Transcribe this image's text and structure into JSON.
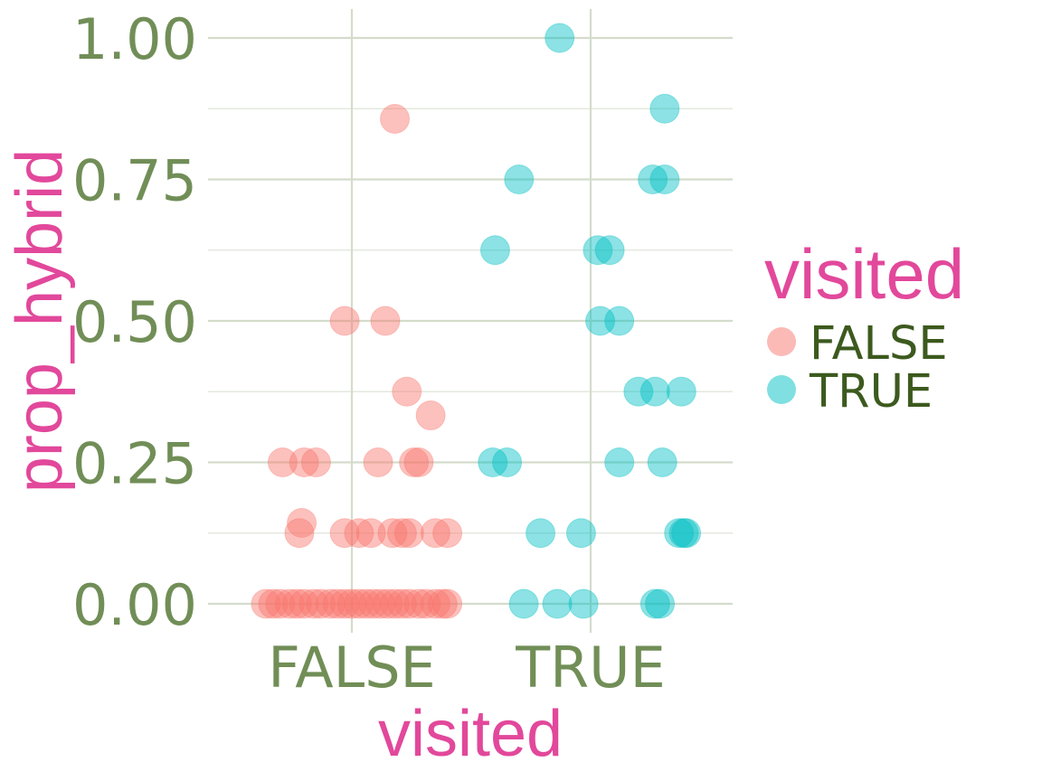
{
  "chart_data": {
    "type": "scatter",
    "title": "",
    "xlabel": "visited",
    "ylabel": "prop_hybrid",
    "categories": [
      "FALSE",
      "TRUE"
    ],
    "y_ticks": [
      "0.00",
      "0.25",
      "0.50",
      "0.75",
      "1.00"
    ],
    "ylim": [
      0,
      1
    ],
    "grid": true,
    "legend": {
      "title": "visited",
      "position": "right",
      "entries": [
        "FALSE",
        "TRUE"
      ]
    },
    "colors": {
      "FALSE": "#F8766D",
      "TRUE": "#00BFC4",
      "axis_text": "#718e57",
      "title_text": "#e2489b",
      "legend_text": "#3c5a1e",
      "grid": "#d4dccc"
    },
    "series": [
      {
        "name": "FALSE",
        "points": [
          {
            "x": 0.18,
            "y": 0.857
          },
          {
            "x": -0.03,
            "y": 0.5
          },
          {
            "x": 0.14,
            "y": 0.5
          },
          {
            "x": 0.23,
            "y": 0.375
          },
          {
            "x": 0.33,
            "y": 0.333
          },
          {
            "x": -0.29,
            "y": 0.25
          },
          {
            "x": -0.2,
            "y": 0.25
          },
          {
            "x": -0.15,
            "y": 0.25
          },
          {
            "x": 0.11,
            "y": 0.25
          },
          {
            "x": 0.26,
            "y": 0.25
          },
          {
            "x": 0.28,
            "y": 0.25
          },
          {
            "x": -0.21,
            "y": 0.143
          },
          {
            "x": -0.22,
            "y": 0.125
          },
          {
            "x": -0.03,
            "y": 0.125
          },
          {
            "x": 0.03,
            "y": 0.125
          },
          {
            "x": 0.08,
            "y": 0.125
          },
          {
            "x": 0.17,
            "y": 0.125
          },
          {
            "x": 0.21,
            "y": 0.125
          },
          {
            "x": 0.24,
            "y": 0.125
          },
          {
            "x": 0.35,
            "y": 0.125
          },
          {
            "x": 0.4,
            "y": 0.125
          },
          {
            "x": -0.36,
            "y": 0
          },
          {
            "x": -0.33,
            "y": 0
          },
          {
            "x": -0.3,
            "y": 0
          },
          {
            "x": -0.26,
            "y": 0
          },
          {
            "x": -0.23,
            "y": 0
          },
          {
            "x": -0.2,
            "y": 0
          },
          {
            "x": -0.16,
            "y": 0
          },
          {
            "x": -0.13,
            "y": 0
          },
          {
            "x": -0.09,
            "y": 0
          },
          {
            "x": -0.06,
            "y": 0
          },
          {
            "x": -0.03,
            "y": 0
          },
          {
            "x": 0.0,
            "y": 0
          },
          {
            "x": 0.03,
            "y": 0
          },
          {
            "x": 0.06,
            "y": 0
          },
          {
            "x": 0.09,
            "y": 0
          },
          {
            "x": 0.12,
            "y": 0
          },
          {
            "x": 0.15,
            "y": 0
          },
          {
            "x": 0.18,
            "y": 0
          },
          {
            "x": 0.21,
            "y": 0
          },
          {
            "x": 0.24,
            "y": 0
          },
          {
            "x": 0.28,
            "y": 0
          },
          {
            "x": 0.31,
            "y": 0
          },
          {
            "x": 0.35,
            "y": 0
          },
          {
            "x": 0.38,
            "y": 0
          },
          {
            "x": 0.4,
            "y": 0
          }
        ]
      },
      {
        "name": "TRUE",
        "points": [
          {
            "x": 0.87,
            "y": 1.0
          },
          {
            "x": 1.31,
            "y": 0.875
          },
          {
            "x": 0.7,
            "y": 0.75
          },
          {
            "x": 1.26,
            "y": 0.75
          },
          {
            "x": 1.31,
            "y": 0.75
          },
          {
            "x": 0.6,
            "y": 0.625
          },
          {
            "x": 1.03,
            "y": 0.625
          },
          {
            "x": 1.08,
            "y": 0.625
          },
          {
            "x": 1.04,
            "y": 0.5
          },
          {
            "x": 1.12,
            "y": 0.5
          },
          {
            "x": 1.2,
            "y": 0.375
          },
          {
            "x": 1.27,
            "y": 0.375
          },
          {
            "x": 1.38,
            "y": 0.375
          },
          {
            "x": 0.59,
            "y": 0.25
          },
          {
            "x": 0.65,
            "y": 0.25
          },
          {
            "x": 1.12,
            "y": 0.25
          },
          {
            "x": 1.3,
            "y": 0.25
          },
          {
            "x": 0.79,
            "y": 0.125
          },
          {
            "x": 0.96,
            "y": 0.125
          },
          {
            "x": 1.37,
            "y": 0.125
          },
          {
            "x": 1.39,
            "y": 0.125
          },
          {
            "x": 1.4,
            "y": 0.125
          },
          {
            "x": 0.72,
            "y": 0
          },
          {
            "x": 0.86,
            "y": 0
          },
          {
            "x": 0.97,
            "y": 0
          },
          {
            "x": 1.27,
            "y": 0
          },
          {
            "x": 1.29,
            "y": 0
          }
        ]
      }
    ]
  }
}
